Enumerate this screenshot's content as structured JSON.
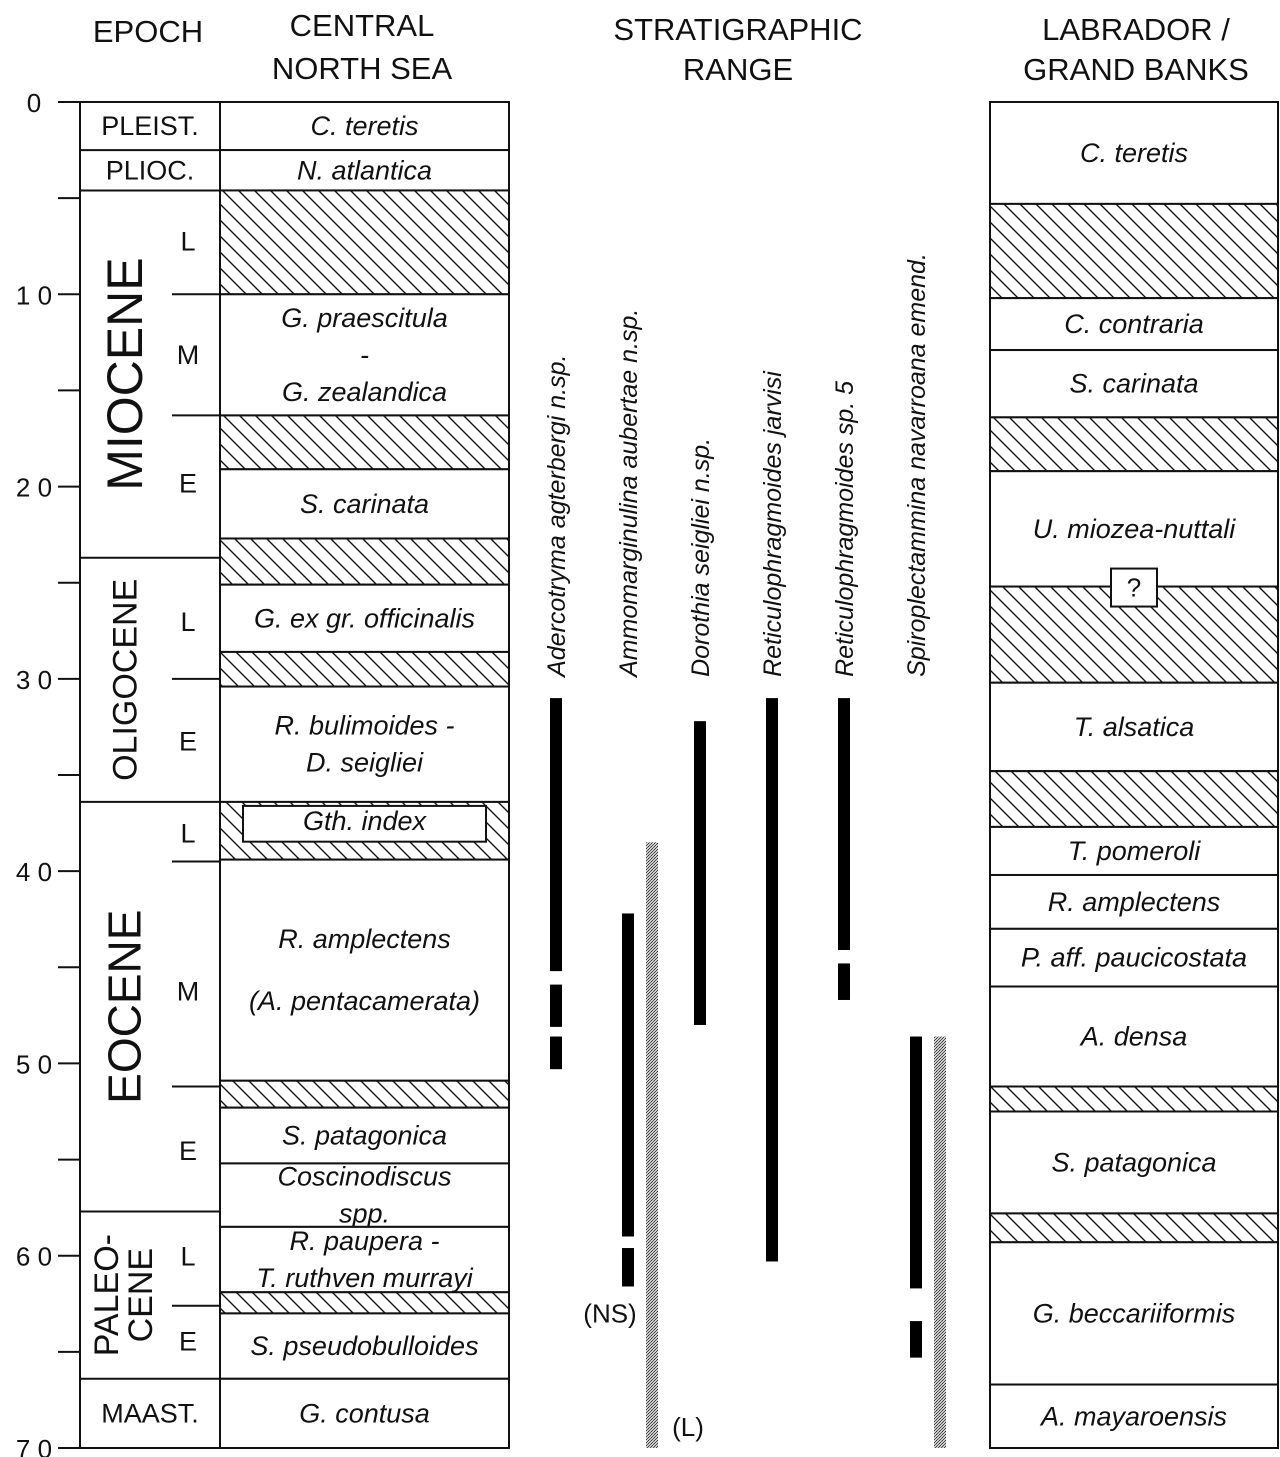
{
  "headers": {
    "epoch": "EPOCH",
    "cns_line1": "CENTRAL",
    "cns_line2": "NORTH SEA",
    "range_line1": "STRATIGRAPHIC",
    "range_line2": "RANGE",
    "lab_line1": "LABRADOR /",
    "lab_line2": "GRAND BANKS"
  },
  "age_axis": {
    "unit": "Ma",
    "min": 0,
    "max": 70,
    "major_ticks": [
      0,
      10,
      20,
      30,
      40,
      50,
      60,
      70
    ],
    "minor_ticks": [
      5,
      15,
      25,
      35,
      45,
      55,
      65
    ]
  },
  "epochs": [
    {
      "label": "PLEIST.",
      "top": 0,
      "bottom": 2.5
    },
    {
      "label": "PLIOC.",
      "top": 2.5,
      "bottom": 4.6
    },
    {
      "label": "MIOCENE",
      "top": 4.6,
      "bottom": 23.7,
      "vertical": true
    },
    {
      "label": "OLIGOCENE",
      "top": 23.7,
      "bottom": 36.4,
      "vertical": true
    },
    {
      "label": "EOCENE",
      "top": 36.4,
      "bottom": 57.7,
      "vertical": true
    },
    {
      "label": "PALEO-\nCENE",
      "top": 57.7,
      "bottom": 66.4,
      "vertical": true
    },
    {
      "label": "MAAST.",
      "top": 66.4,
      "bottom": 70
    }
  ],
  "subepochs": [
    {
      "label": "L",
      "age": 7.2
    },
    {
      "label": "M",
      "age": 13.1
    },
    {
      "label": "E",
      "age": 19.8
    },
    {
      "label": "L",
      "age": 27.0
    },
    {
      "label": "E",
      "age": 33.2
    },
    {
      "label": "L",
      "age": 38.0
    },
    {
      "label": "M",
      "age": 46.2
    },
    {
      "label": "E",
      "age": 54.5
    },
    {
      "label": "L",
      "age": 60.0
    },
    {
      "label": "E",
      "age": 64.4
    }
  ],
  "epoch_dividers": [
    10,
    16.3,
    30,
    39.5,
    51.2,
    62.6
  ],
  "central_north_sea": [
    {
      "name": "C. teretis",
      "top": 0,
      "bottom": 2.5
    },
    {
      "name": "N. atlantica",
      "top": 2.5,
      "bottom": 4.6
    },
    {
      "hatch": true,
      "top": 4.6,
      "bottom": 10
    },
    {
      "name": "G. praescitula\n-\nG. zealandica",
      "top": 10,
      "bottom": 16.3
    },
    {
      "hatch": true,
      "top": 16.3,
      "bottom": 19.1
    },
    {
      "name": "S. carinata",
      "top": 19.1,
      "bottom": 22.7
    },
    {
      "hatch": true,
      "top": 22.7,
      "bottom": 25.1
    },
    {
      "name": "G. ex gr. officinalis",
      "top": 25.1,
      "bottom": 28.6
    },
    {
      "hatch": true,
      "top": 28.6,
      "bottom": 30.4
    },
    {
      "name": "R. bulimoides -\nD.  seigliei",
      "top": 30.4,
      "bottom": 36.4
    },
    {
      "name": "Gth. index",
      "top": 36.4,
      "bottom": 39.4,
      "hatch_frame": true
    },
    {
      "name": "R. amplectens\n\n(A. pentacamerata)",
      "top": 39.4,
      "bottom": 50.9
    },
    {
      "hatch": true,
      "top": 50.9,
      "bottom": 52.3
    },
    {
      "name": "S. patagonica",
      "top": 52.3,
      "bottom": 55.2
    },
    {
      "name": "Coscinodiscus\nspp.",
      "top": 55.2,
      "bottom": 58.5
    },
    {
      "name": "R. paupera     -\nT. ruthven murrayi",
      "top": 58.5,
      "bottom": 61.9
    },
    {
      "hatch": true,
      "top": 61.9,
      "bottom": 63.0
    },
    {
      "name": "S. pseudobulloides",
      "top": 63.0,
      "bottom": 66.4
    },
    {
      "name": "G. contusa",
      "top": 66.4,
      "bottom": 70
    }
  ],
  "labrador_grand_banks": [
    {
      "name": "C. teretis",
      "top": 0,
      "bottom": 5.3
    },
    {
      "hatch": true,
      "top": 5.3,
      "bottom": 10.2
    },
    {
      "name": "C. contraria",
      "top": 10.2,
      "bottom": 12.9
    },
    {
      "name": "S. carinata",
      "top": 12.9,
      "bottom": 16.4
    },
    {
      "hatch": true,
      "top": 16.4,
      "bottom": 19.2
    },
    {
      "name": "U. miozea-nuttali",
      "top": 19.2,
      "bottom": 25.2
    },
    {
      "hatch": true,
      "top": 25.2,
      "bottom": 30.2,
      "query": "?"
    },
    {
      "name": "T. alsatica",
      "top": 30.2,
      "bottom": 34.8
    },
    {
      "hatch": true,
      "top": 34.8,
      "bottom": 37.7
    },
    {
      "name": "T. pomeroli",
      "top": 37.7,
      "bottom": 40.2
    },
    {
      "name": "R. amplectens",
      "top": 40.2,
      "bottom": 43.0
    },
    {
      "name": "P. aff. paucicostata",
      "top": 43.0,
      "bottom": 46.0
    },
    {
      "name": "A. densa",
      "top": 46.0,
      "bottom": 51.2
    },
    {
      "hatch": true,
      "top": 51.2,
      "bottom": 52.5
    },
    {
      "name": "S. patagonica",
      "top": 52.5,
      "bottom": 57.8
    },
    {
      "hatch": true,
      "top": 57.8,
      "bottom": 59.3
    },
    {
      "name": "G. beccariiformis",
      "top": 59.3,
      "bottom": 66.7
    },
    {
      "name": "A. mayaroensis",
      "top": 66.7,
      "bottom": 70
    }
  ],
  "ranges": [
    {
      "species": "Adercotryma agterbergi n.sp.",
      "segments": [
        [
          31.0,
          45.2
        ],
        [
          45.9,
          48.1
        ],
        [
          48.6,
          50.3
        ]
      ]
    },
    {
      "species": "Ammomarginulina aubertae n.sp.",
      "segments": [
        [
          42.2,
          59.0
        ],
        [
          59.6,
          61.6
        ]
      ],
      "stipple": [
        38.5,
        70.0
      ],
      "note": "(NS)",
      "note_age": 63.0,
      "stipple_note": "(L)",
      "stipple_note_age": 68.9
    },
    {
      "species": "Dorothia seigliei n.sp.",
      "segments": [
        [
          32.2,
          48.0
        ]
      ]
    },
    {
      "species": "Reticulophragmoides jarvisi",
      "segments": [
        [
          31.0,
          60.3
        ]
      ]
    },
    {
      "species": "Reticulophragmoides sp. 5",
      "segments": [
        [
          31.0,
          44.1
        ],
        [
          44.8,
          46.7
        ]
      ]
    },
    {
      "species": "Spiroplectammina navarroana  emend.",
      "segments": [
        [
          48.6,
          61.7
        ],
        [
          63.4,
          65.3
        ]
      ],
      "stipple": [
        48.6,
        70.0
      ]
    }
  ]
}
